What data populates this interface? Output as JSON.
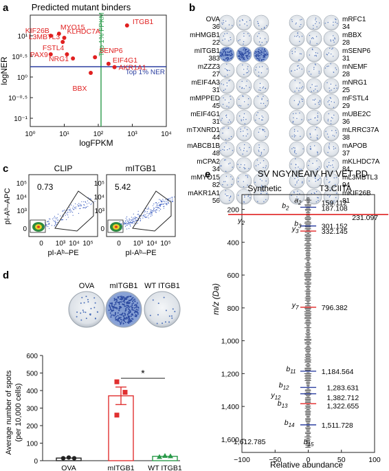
{
  "panels": {
    "a": {
      "letter": "a",
      "title": "Predicted mutant binders",
      "xlabel": "logFPKM",
      "ylabel": "logNER",
      "x_ticks": [
        "10⁰",
        "10¹",
        "10²",
        "10³",
        "10⁴"
      ],
      "y_ticks": [
        "10¹",
        "10⁰·⁵",
        "10⁰",
        "10⁻⁰·⁵",
        "10⁻¹"
      ],
      "fpkm_label": "Top 1% FPKM",
      "ner_label": "Top 1% NER",
      "points": [
        {
          "label": "ITGB1",
          "fpkm": 700,
          "ner": 1.25
        },
        {
          "label": "KIF26B",
          "fpkm": 4,
          "ner": 1.0
        },
        {
          "label": "MYO15",
          "fpkm": 7,
          "ner": 1.05
        },
        {
          "label": "KLHDC7A",
          "fpkm": 10,
          "ner": 0.95
        },
        {
          "label": "L3MBTL3",
          "fpkm": 9,
          "ner": 0.85
        },
        {
          "label": "PAX9",
          "fpkm": 4,
          "ner": 0.55
        },
        {
          "label": "FSTL4",
          "fpkm": 12,
          "ner": 0.55
        },
        {
          "label": "NRG1",
          "fpkm": 18,
          "ner": 0.45
        },
        {
          "label": "SENP6",
          "fpkm": 80,
          "ner": 0.48
        },
        {
          "label": "EIF4G1",
          "fpkm": 200,
          "ner": 0.32
        },
        {
          "label": "AKR1A1",
          "fpkm": 300,
          "ner": 0.24
        },
        {
          "label": "BBX",
          "fpkm": 60,
          "ner": 0.1
        }
      ]
    },
    "b": {
      "letter": "b",
      "left": [
        {
          "name": "OVA",
          "count": "36"
        },
        {
          "name": "mHMGB1",
          "count": "22"
        },
        {
          "name": "mITGB1",
          "count": "383"
        },
        {
          "name": "mZZZ3",
          "count": "27"
        },
        {
          "name": "mEIF4A3",
          "count": "31"
        },
        {
          "name": "mMPPED",
          "count": "45"
        },
        {
          "name": "mEIF4G1",
          "count": "31"
        },
        {
          "name": "mTXNRD1",
          "count": "44"
        },
        {
          "name": "mABCB1B",
          "count": "48"
        },
        {
          "name": "mCPA2",
          "count": "34"
        },
        {
          "name": "mMYO15",
          "count": "82"
        },
        {
          "name": "mAKR1A1",
          "count": "56"
        }
      ],
      "right": [
        {
          "name": "mRFC1",
          "count": "34"
        },
        {
          "name": "mBBX",
          "count": "28"
        },
        {
          "name": "mSENP6",
          "count": "31"
        },
        {
          "name": "mNEMF",
          "count": "28"
        },
        {
          "name": "mNRG1",
          "count": "25"
        },
        {
          "name": "mFSTL4",
          "count": "29"
        },
        {
          "name": "mUBE2C",
          "count": "36"
        },
        {
          "name": "mLRRC37A",
          "count": "38"
        },
        {
          "name": "mAPOB",
          "count": "37"
        },
        {
          "name": "mKLHDC7A",
          "count": "84"
        },
        {
          "name": "mL3MBTL3",
          "count": "94"
        },
        {
          "name": "mKIF26B",
          "count": "81"
        }
      ]
    },
    "c": {
      "letter": "c",
      "plots": [
        {
          "title": "CLIP",
          "value": "0.73"
        },
        {
          "title": "mITGB1",
          "value": "5.42"
        }
      ],
      "xlabel": "pI-Aᵇ–PE",
      "ylabel": "pI-Aᵇ–APC",
      "ticks": [
        "0",
        "10³",
        "10⁴",
        "10⁵"
      ]
    },
    "d": {
      "letter": "d",
      "well_labels": [
        "OVA",
        "mITGB1",
        "WT ITGB1"
      ],
      "ylabel": "Average number of spots",
      "ylabel2": "(per 10,000 cells)",
      "y_ticks": [
        "0",
        "100",
        "200",
        "300",
        "400",
        "500",
        "600"
      ],
      "categories": [
        "OVA",
        "mITGB1",
        "WT ITGB1"
      ],
      "sig": "*",
      "colors": [
        "#222222",
        "#e03030",
        "#2a9a4a"
      ]
    },
    "e": {
      "letter": "e",
      "sequence": "SV NGYNEAIV HV VET PD",
      "left_title": "Synthetic",
      "right_title": "T3.CIITA",
      "ylabel": "m/z (Da)",
      "xlabel": "Relative abundance",
      "y_ticks": [
        "200",
        "400",
        "600",
        "800",
        "1,000",
        "1,200",
        "1,400",
        "1,600"
      ],
      "x_ticks": [
        "−100",
        "−50",
        "0",
        "50",
        "100"
      ],
      "annotations": [
        {
          "ion": "a2",
          "mz": "159.112"
        },
        {
          "ion": "b2",
          "mz": "187.108"
        },
        {
          "ion": "y2",
          "mz": "231.097"
        },
        {
          "ion": "b3",
          "mz": "301.152"
        },
        {
          "ion": "y3",
          "mz": "332.145"
        },
        {
          "ion": "y7",
          "mz": "796.382"
        },
        {
          "ion": "b11",
          "mz": "1,184.564"
        },
        {
          "ion": "b12",
          "mz": "1,283.631"
        },
        {
          "ion": "y12",
          "mz": "1,382.712"
        },
        {
          "ion": "b13",
          "mz": "1,322.655"
        },
        {
          "ion": "b14",
          "mz": "1,511.728"
        },
        {
          "ion": "b15",
          "mz": "1,612.785"
        }
      ]
    }
  },
  "chart_data": [
    {
      "type": "scatter",
      "title": "Predicted mutant binders",
      "xlabel": "logFPKM",
      "ylabel": "logNER",
      "xscale": "log",
      "xlim": [
        1,
        10000
      ],
      "ylim": [
        -1.2,
        1.5
      ],
      "x": [
        700,
        4,
        7,
        10,
        9,
        4,
        12,
        18,
        80,
        200,
        300,
        60
      ],
      "y": [
        1.25,
        1.0,
        1.05,
        0.95,
        0.85,
        0.55,
        0.55,
        0.45,
        0.48,
        0.32,
        0.24,
        0.1
      ]
    },
    {
      "type": "bar",
      "categories": [
        "OVA",
        "mITGB1",
        "WT ITGB1"
      ],
      "values": [
        15,
        370,
        25
      ],
      "points": [
        [
          14,
          18,
          14
        ],
        [
          260,
          390,
          450
        ],
        [
          22,
          28,
          26
        ]
      ],
      "ylabel": "Average number of spots (per 10,000 cells)",
      "ylim": [
        0,
        600
      ]
    }
  ]
}
